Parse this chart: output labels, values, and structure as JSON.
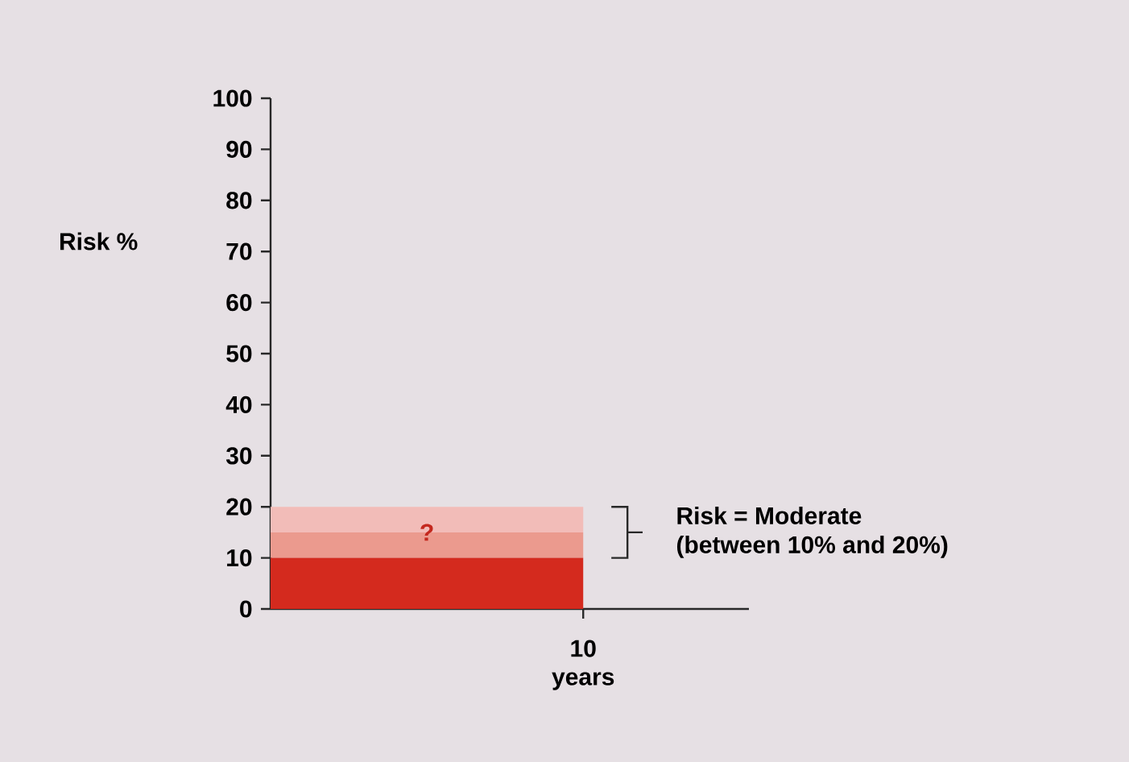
{
  "chart_data": {
    "type": "bar",
    "stacked": true,
    "categories": [
      "10"
    ],
    "xlabel": "years",
    "ylabel": "Risk %",
    "ylim": [
      0,
      100
    ],
    "yticks": [
      0,
      10,
      20,
      30,
      40,
      50,
      60,
      70,
      80,
      90,
      100
    ],
    "series": [
      {
        "color": "#d42a1e",
        "values": [
          10
        ]
      },
      {
        "color": "#eb9a8e",
        "values": [
          5
        ]
      },
      {
        "color": "#f2bcb8",
        "values": [
          5
        ]
      }
    ],
    "annotations": [
      "?",
      "Risk = Moderate",
      "(between 10% and 20%)"
    ]
  }
}
